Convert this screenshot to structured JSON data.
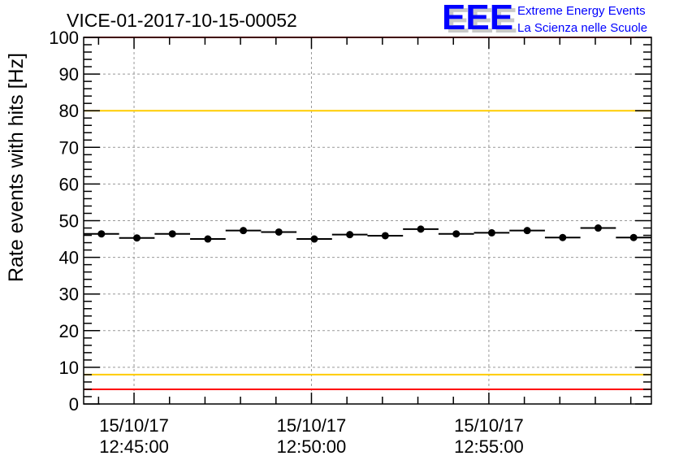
{
  "chart_data": {
    "type": "scatter",
    "title": "VICE-01-2017-10-15-00052",
    "xlabel": "",
    "ylabel": "Rate events with hits [Hz]",
    "ylim": [
      0,
      100
    ],
    "xlim_minutes": [
      -1.42,
      14.58
    ],
    "yticks": [
      0,
      10,
      20,
      30,
      40,
      50,
      60,
      70,
      80,
      90,
      100
    ],
    "xticks": [
      {
        "minute": 0,
        "date": "15/10/17",
        "time": "12:45:00"
      },
      {
        "minute": 5,
        "date": "15/10/17",
        "time": "12:50:00"
      },
      {
        "minute": 10,
        "date": "15/10/17",
        "time": "12:55:00"
      }
    ],
    "grid": true,
    "bin_width_minutes": 1,
    "x_minutes": [
      -0.92,
      0.08,
      1.08,
      2.08,
      3.08,
      4.08,
      5.08,
      6.08,
      7.08,
      8.08,
      9.08,
      10.08,
      11.08,
      12.08,
      13.08,
      14.08
    ],
    "values": [
      46.4,
      45.3,
      46.4,
      45.0,
      47.3,
      46.9,
      45.0,
      46.2,
      45.9,
      47.7,
      46.4,
      46.7,
      47.3,
      45.4,
      48.0,
      45.4
    ],
    "reference_lines": [
      {
        "value": 100,
        "color": "#ff0000"
      },
      {
        "value": 80,
        "color": "#ffcc00"
      },
      {
        "value": 8,
        "color": "#ffcc00"
      },
      {
        "value": 4,
        "color": "#ff0000"
      }
    ]
  },
  "logo": {
    "letters": "EEE",
    "line1": "Extreme Energy Events",
    "line2": "La Scienza nelle Scuole",
    "color": "#0000ff"
  }
}
